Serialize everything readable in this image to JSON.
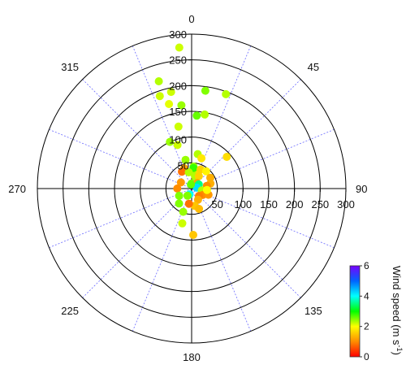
{
  "chart_data": {
    "type": "scatter",
    "coordinate_system": "polar",
    "angular_direction": "clockwise",
    "angular_zero": "north",
    "radial_range": [
      0,
      300
    ],
    "radial_ticks": [
      50,
      100,
      150,
      200,
      250,
      300
    ],
    "radial_tick_labels": [
      "50",
      "100",
      "150",
      "200",
      "250",
      "300"
    ],
    "angular_label_values": [
      0,
      45,
      90,
      135,
      180,
      225,
      270,
      315
    ],
    "angular_labels": [
      "0",
      "45",
      "90",
      "135",
      "180",
      "225",
      "270",
      "315"
    ],
    "angular_grid_step": 22.5,
    "grid": true,
    "colorbar": {
      "title_main": "Wind speed (m s",
      "title_sup": "-1",
      "title_end": ")",
      "range": [
        0,
        6
      ],
      "ticks": [
        "0",
        "2",
        "4",
        "6"
      ],
      "placement": "bottom-right",
      "colormap": [
        "#ff0000",
        "#ff8c00",
        "#ffff00",
        "#00ff00",
        "#00ffff",
        "#0064ff",
        "#7800ff"
      ]
    },
    "points": [
      {
        "angle": 355,
        "r": 275,
        "speed": 2.2
      },
      {
        "angle": 343,
        "r": 218,
        "speed": 2.3
      },
      {
        "angle": 348,
        "r": 192,
        "speed": 2.2
      },
      {
        "angle": 341,
        "r": 190,
        "speed": 2.2
      },
      {
        "angle": 8,
        "r": 192,
        "speed": 2.5
      },
      {
        "angle": 20,
        "r": 195,
        "speed": 2.3
      },
      {
        "angle": 345,
        "r": 170,
        "speed": 2.1
      },
      {
        "angle": 353,
        "r": 163,
        "speed": 2.4
      },
      {
        "angle": 4,
        "r": 142,
        "speed": 2.6
      },
      {
        "angle": 10,
        "r": 146,
        "speed": 2.3
      },
      {
        "angle": 348,
        "r": 123,
        "speed": 2.2
      },
      {
        "angle": 335,
        "r": 100,
        "speed": 2.4
      },
      {
        "angle": 342,
        "r": 89,
        "speed": 2.2
      },
      {
        "angle": 48,
        "r": 92,
        "speed": 1.7
      },
      {
        "angle": 348,
        "r": 57,
        "speed": 2.4
      },
      {
        "angle": 10,
        "r": 68,
        "speed": 2.3
      },
      {
        "angle": 18,
        "r": 62,
        "speed": 1.8
      },
      {
        "angle": 340,
        "r": 42,
        "speed": 1.2
      },
      {
        "angle": 330,
        "r": 38,
        "speed": 0.8
      },
      {
        "angle": 5,
        "r": 43,
        "speed": 2.4
      },
      {
        "angle": 12,
        "r": 33,
        "speed": 1.7
      },
      {
        "angle": 5,
        "r": 40,
        "speed": 2.8
      },
      {
        "angle": 25,
        "r": 41,
        "speed": 1.6
      },
      {
        "angle": 40,
        "r": 44,
        "speed": 1.9
      },
      {
        "angle": 60,
        "r": 42,
        "speed": 1.3
      },
      {
        "angle": 15,
        "r": 25,
        "speed": 2.3
      },
      {
        "angle": 350,
        "r": 32,
        "speed": 2.3
      },
      {
        "angle": 30,
        "r": 28,
        "speed": 1.6
      },
      {
        "angle": 75,
        "r": 38,
        "speed": 1.3
      },
      {
        "angle": 0,
        "r": 10,
        "speed": 2.5
      },
      {
        "angle": 45,
        "r": 15,
        "speed": 1.2
      },
      {
        "angle": 80,
        "r": 30,
        "speed": 1.0
      },
      {
        "angle": 300,
        "r": 24,
        "speed": 1.1
      },
      {
        "angle": 270,
        "r": 28,
        "speed": 1.0
      },
      {
        "angle": 60,
        "r": 16,
        "speed": 3.5
      },
      {
        "angle": 80,
        "r": 10,
        "speed": 4.2
      },
      {
        "angle": 100,
        "r": 20,
        "speed": 2.3
      },
      {
        "angle": 120,
        "r": 25,
        "speed": 1.0
      },
      {
        "angle": 135,
        "r": 20,
        "speed": 0.9
      },
      {
        "angle": 150,
        "r": 25,
        "speed": 1.3
      },
      {
        "angle": 170,
        "r": 34,
        "speed": 1.5
      },
      {
        "angle": 160,
        "r": 42,
        "speed": 1.4
      },
      {
        "angle": 200,
        "r": 12,
        "speed": 4.0
      },
      {
        "angle": 210,
        "r": 16,
        "speed": 2.5
      },
      {
        "angle": 240,
        "r": 28,
        "speed": 2.5
      },
      {
        "angle": 190,
        "r": 30,
        "speed": 0.8
      },
      {
        "angle": 200,
        "r": 48,
        "speed": 2.4
      },
      {
        "angle": 195,
        "r": 70,
        "speed": 2.2
      },
      {
        "angle": 178,
        "r": 90,
        "speed": 1.5
      },
      {
        "angle": 110,
        "r": 35,
        "speed": 1.1
      },
      {
        "angle": 95,
        "r": 30,
        "speed": 2.0
      },
      {
        "angle": 350,
        "r": 8,
        "speed": 2.6
      },
      {
        "angle": 220,
        "r": 38,
        "speed": 2.5
      }
    ]
  }
}
